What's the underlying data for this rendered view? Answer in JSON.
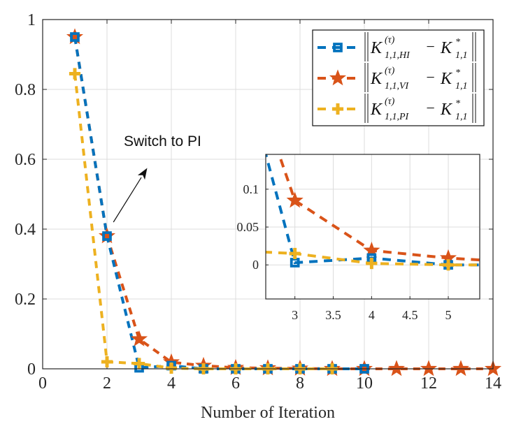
{
  "chart_data": {
    "type": "line",
    "title": "",
    "xlabel": "Number of Iteration",
    "ylabel": "",
    "xlim": [
      0,
      14
    ],
    "ylim": [
      0,
      1
    ],
    "xticks": [
      0,
      2,
      4,
      6,
      8,
      10,
      12,
      14
    ],
    "yticks": [
      0,
      0.2,
      0.4,
      0.6,
      0.8,
      1
    ],
    "xtick_labels": [
      "0",
      "2",
      "4",
      "6",
      "8",
      "10",
      "12",
      "14"
    ],
    "ytick_labels": [
      "0",
      "0.2",
      "0.4",
      "0.6",
      "0.8",
      "1"
    ],
    "grid": true,
    "legend_position": "top-right",
    "series": [
      {
        "name": "HI",
        "legend": {
          "K": "K",
          "sup": "(τ)",
          "sub": "1,1,HI",
          "minus": "−",
          "Kstar_sub": "1,1",
          "Kstar_sup": "*"
        },
        "color": "#0072BD",
        "marker": "square",
        "x": [
          1,
          2,
          3,
          4,
          5,
          6,
          7,
          8,
          9,
          10
        ],
        "values": [
          0.95,
          0.38,
          0.003,
          0.009,
          0,
          0,
          0,
          0,
          0,
          0
        ]
      },
      {
        "name": "VI",
        "legend": {
          "K": "K",
          "sup": "(τ)",
          "sub": "1,1,VI",
          "minus": "−",
          "Kstar_sub": "1,1",
          "Kstar_sup": "*"
        },
        "color": "#D95319",
        "marker": "star",
        "x": [
          1,
          2,
          3,
          4,
          5,
          6,
          7,
          8,
          9,
          10,
          11,
          12,
          13,
          14
        ],
        "values": [
          0.95,
          0.38,
          0.085,
          0.019,
          0.009,
          0.003,
          0.002,
          0.001,
          0,
          0,
          0,
          0,
          0,
          0
        ]
      },
      {
        "name": "PI",
        "legend": {
          "K": "K",
          "sup": "(τ)",
          "sub": "1,1,PI",
          "minus": "−",
          "Kstar_sub": "1,1",
          "Kstar_sup": "*"
        },
        "color": "#EDB120",
        "marker": "plus",
        "x": [
          1,
          2,
          3,
          4,
          5,
          6,
          7,
          8,
          9
        ],
        "values": [
          0.845,
          0.02,
          0.015,
          0.002,
          0,
          0,
          0,
          0,
          0
        ]
      }
    ],
    "annotation": {
      "text": "Switch to PI",
      "arrow_from": [
        2.2,
        0.42
      ],
      "arrow_to": [
        3.25,
        0.575
      ]
    },
    "inset": {
      "xlim": [
        2.62,
        5.41
      ],
      "ylim": [
        -0.045,
        0.146
      ],
      "xticks": [
        3,
        3.5,
        4,
        4.5,
        5
      ],
      "yticks": [
        0,
        0.05,
        0.1
      ],
      "xtick_labels": [
        "3",
        "3.5",
        "4",
        "4.5",
        "5"
      ],
      "ytick_labels": [
        "0",
        "0.05",
        "0.1"
      ],
      "grid": true
    }
  }
}
